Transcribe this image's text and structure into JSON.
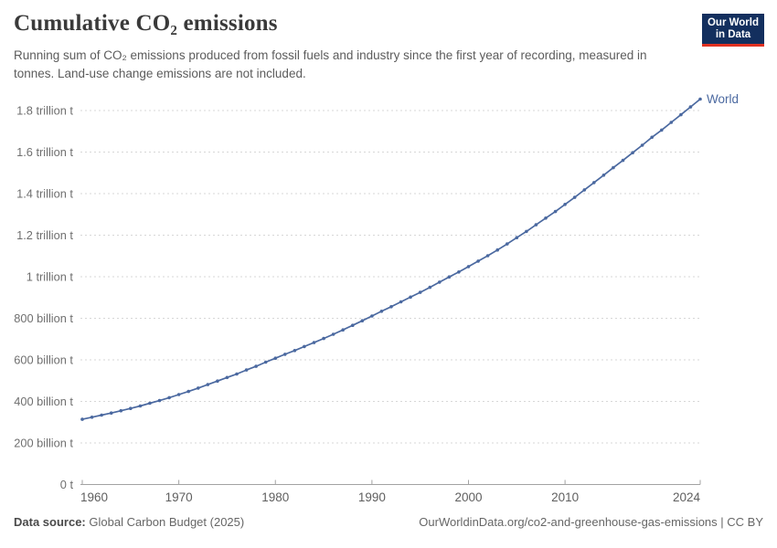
{
  "header": {
    "title": "Cumulative CO₂ emissions",
    "subtitle": "Running sum of CO₂ emissions produced from fossil fuels and industry since the first year of recording, measured in tonnes. Land-use change emissions are not included.",
    "logo": {
      "line1": "Our World",
      "line2": "in Data"
    }
  },
  "chart_data": {
    "type": "line",
    "title": "Cumulative CO₂ emissions",
    "unit": "tonnes",
    "grid": true,
    "legend_position": "end-of-line-label",
    "x_start": 1960,
    "x_end": 2024,
    "xlim": [
      1960,
      2024
    ],
    "ylim": [
      0,
      1870
    ],
    "x_ticks": [
      1960,
      1970,
      1980,
      1990,
      2000,
      2010,
      2024
    ],
    "y_ticks": [
      {
        "value": 0,
        "label": "0 t"
      },
      {
        "value": 200,
        "label": "200 billion t"
      },
      {
        "value": 400,
        "label": "400 billion t"
      },
      {
        "value": 600,
        "label": "600 billion t"
      },
      {
        "value": 800,
        "label": "800 billion t"
      },
      {
        "value": 1000,
        "label": "1 trillion t"
      },
      {
        "value": 1200,
        "label": "1.2 trillion t"
      },
      {
        "value": 1400,
        "label": "1.4 trillion t"
      },
      {
        "value": 1600,
        "label": "1.6 trillion t"
      },
      {
        "value": 1800,
        "label": "1.8 trillion t"
      }
    ],
    "value_unit_note": "values in billion tonnes",
    "series": [
      {
        "name": "World",
        "color": "#4b69a0",
        "markers": true,
        "values": [
          314,
          324,
          334,
          344,
          355,
          366,
          378,
          391,
          404,
          418,
          433,
          448,
          464,
          481,
          498,
          515,
          532,
          551,
          569,
          589,
          608,
          627,
          645,
          664,
          683,
          703,
          723,
          744,
          766,
          788,
          811,
          834,
          856,
          879,
          902,
          925,
          949,
          974,
          999,
          1023,
          1049,
          1075,
          1101,
          1129,
          1158,
          1188,
          1218,
          1250,
          1282,
          1314,
          1348,
          1382,
          1418,
          1453,
          1489,
          1525,
          1560,
          1597,
          1633,
          1671,
          1706,
          1743,
          1780,
          1817,
          1855
        ]
      }
    ]
  },
  "footer": {
    "source_label": "Data source:",
    "source": "Global Carbon Budget (2025)",
    "right": "OurWorldinData.org/co2-and-greenhouse-gas-emissions | CC BY"
  }
}
